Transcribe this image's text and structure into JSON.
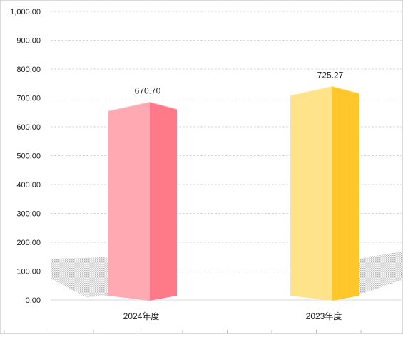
{
  "chart_data": {
    "type": "bar",
    "categories": [
      "2024年度",
      "2023年度"
    ],
    "values": [
      670.7,
      725.27
    ],
    "value_labels": [
      "670.70",
      "725.27"
    ],
    "ylim": [
      0,
      1000
    ],
    "yticks": [
      "0.00",
      "100.00",
      "200.00",
      "300.00",
      "400.00",
      "500.00",
      "600.00",
      "700.00",
      "800.00",
      "900.00",
      "1,000.00"
    ],
    "grid": true,
    "legend": "none",
    "colors": {
      "bar_1_front": "#ffa9b3",
      "bar_1_side": "#ff7a88",
      "bar_1_top": "#ffc0c8",
      "bar_2_front": "#ffe38a",
      "bar_2_side": "#ffc72b",
      "bar_2_top": "#fff0b0",
      "gridline": "#d9d9d9",
      "shadow": "#bfbfbf"
    }
  }
}
